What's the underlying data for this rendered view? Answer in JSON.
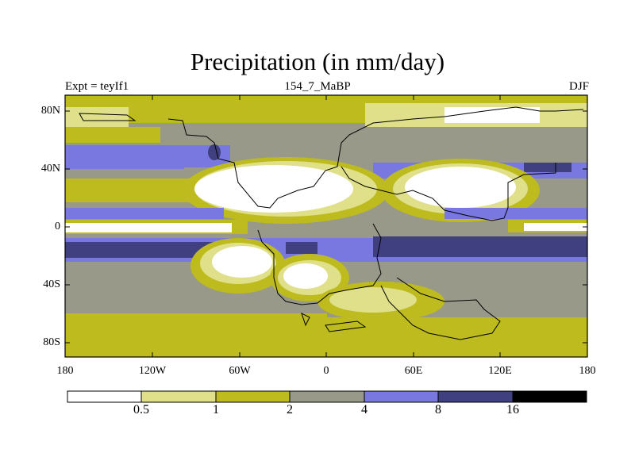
{
  "title": "Precipitation (in mm/day)",
  "left_label": "Expt = teyIf1",
  "center_label": "154_7_MaBP",
  "right_label": "DJF",
  "colors": {
    "c0": "#ffffff",
    "c1": "#e0e08a",
    "c2": "#bdbb1e",
    "c3": "#99998a",
    "c4": "#7878e0",
    "c5": "#404080",
    "c6": "#000000"
  },
  "colorbar": {
    "levels": [
      "0.5",
      "1",
      "2",
      "4",
      "8",
      "16"
    ],
    "colors": [
      "#ffffff",
      "#e0e08a",
      "#bdbb1e",
      "#99998a",
      "#7878e0",
      "#404080",
      "#000000"
    ]
  },
  "axes": {
    "y_labels": [
      "80N",
      "40N",
      "0",
      "40S",
      "80S"
    ],
    "x_labels": [
      "180",
      "120W",
      "60W",
      "0",
      "60E",
      "120E",
      "180"
    ]
  }
}
